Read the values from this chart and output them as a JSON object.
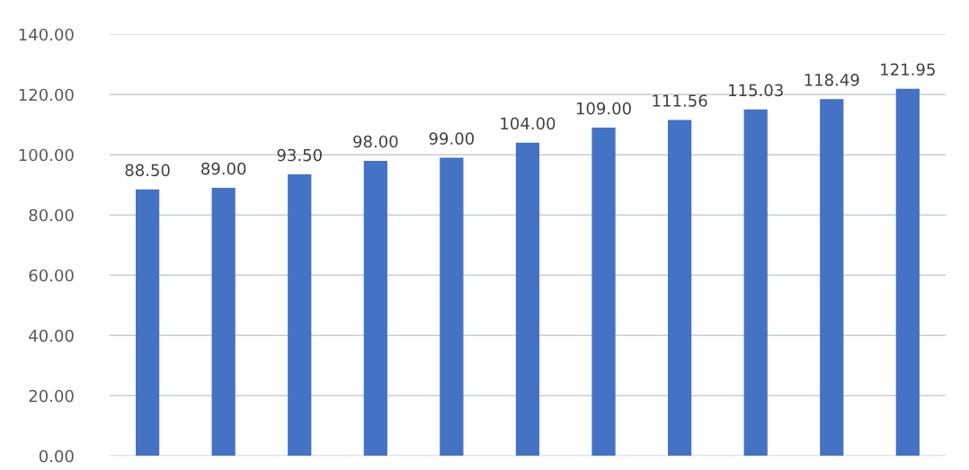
{
  "chart_data": {
    "type": "bar",
    "categories": [
      null,
      null,
      null,
      null,
      null,
      null,
      null,
      null,
      null,
      null,
      null
    ],
    "values": [
      88.5,
      89.0,
      93.5,
      98.0,
      99.0,
      104.0,
      109.0,
      111.56,
      115.03,
      118.49,
      121.95
    ],
    "value_labels": [
      "88.50",
      "89.00",
      "93.50",
      "98.00",
      "99.00",
      "104.00",
      "109.00",
      "111.56",
      "115.03",
      "118.49",
      "121.95"
    ],
    "color": "#4472c4",
    "ylim": [
      0,
      140
    ],
    "yticks": [
      {
        "value": 0,
        "label": "0.00"
      },
      {
        "value": 20,
        "label": "20.00"
      },
      {
        "value": 40,
        "label": "40.00"
      },
      {
        "value": 60,
        "label": "60.00"
      },
      {
        "value": 80,
        "label": "80.00"
      },
      {
        "value": 100,
        "label": "100.00"
      },
      {
        "value": 120,
        "label": "120.00"
      },
      {
        "value": 140,
        "label": "140.00"
      }
    ],
    "grid": "y",
    "tick_labels": "y"
  }
}
